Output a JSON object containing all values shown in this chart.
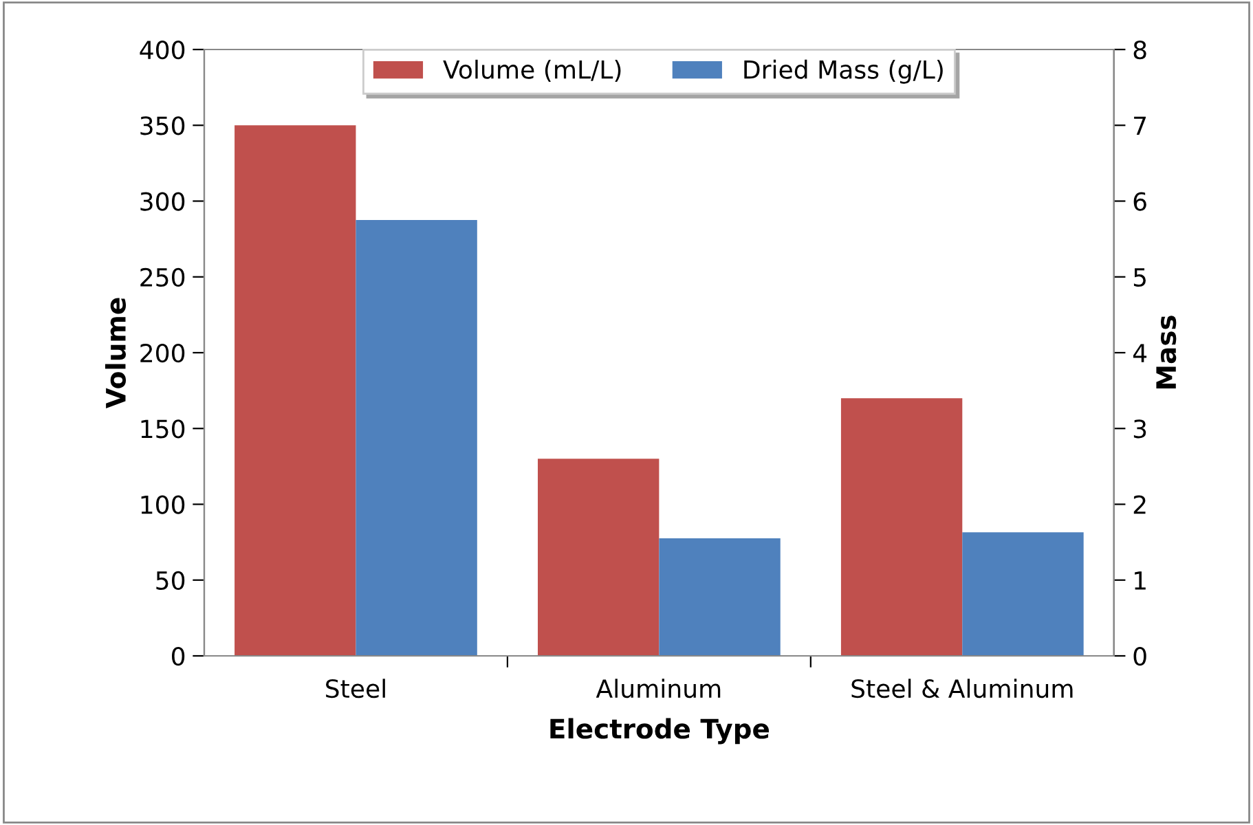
{
  "chart_data": {
    "type": "bar",
    "xlabel": "Electrode Type",
    "ylabel": "Volume",
    "y2label": "Mass",
    "categories": [
      "Steel",
      "Aluminum",
      "Steel & Aluminum"
    ],
    "series": [
      {
        "name": "Volume (mL/L)",
        "color": "#c0504d",
        "values": [
          350,
          130,
          170
        ]
      },
      {
        "name": "Dried Mass (g/L)",
        "color": "#4f81bd",
        "values": [
          5.75,
          1.55,
          1.63
        ],
        "axis": "y2"
      }
    ],
    "ylim": [
      0,
      400
    ],
    "yticks": [
      0,
      50,
      100,
      150,
      200,
      250,
      300,
      350,
      400
    ],
    "y2lim": [
      0,
      8
    ],
    "y2ticks": [
      0,
      1,
      2,
      3,
      4,
      5,
      6,
      7,
      8
    ],
    "grid": false,
    "legend": "top"
  }
}
